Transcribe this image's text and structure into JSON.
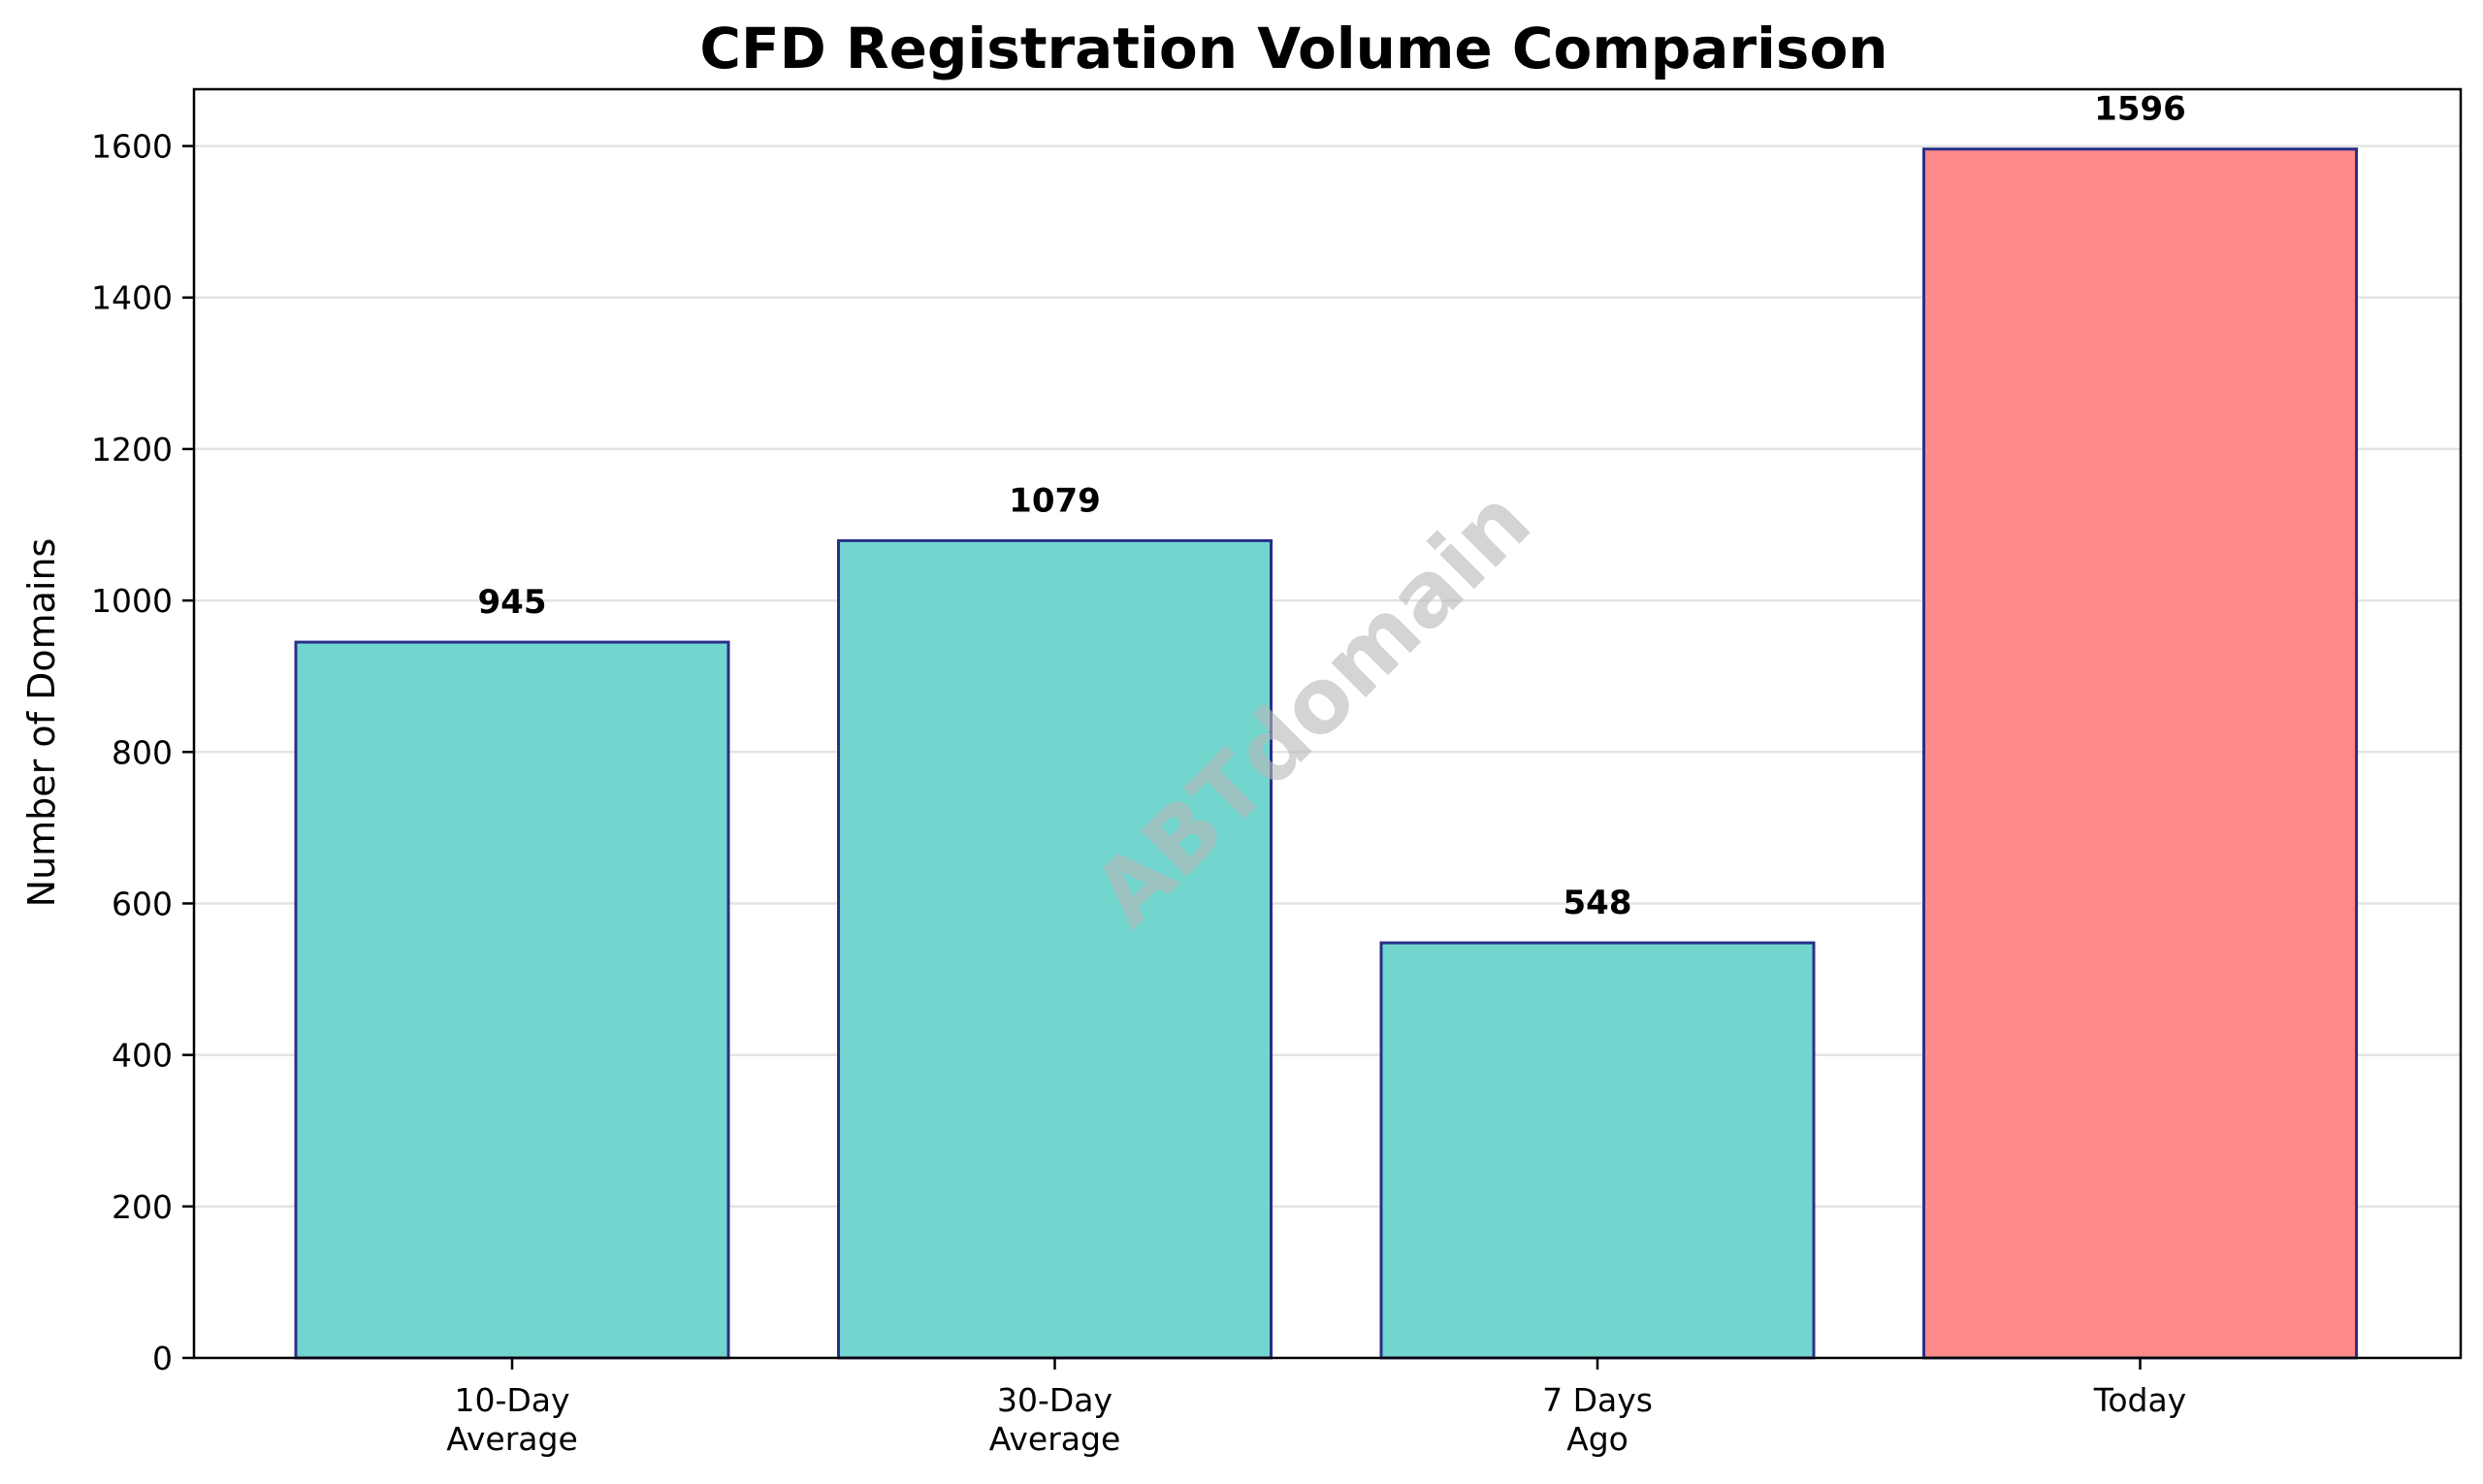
{
  "chart_data": {
    "type": "bar",
    "title": "CFD Registration Volume Comparison",
    "xlabel": "",
    "ylabel": "Number of Domains",
    "categories": [
      [
        "10-Day",
        "Average"
      ],
      [
        "30-Day",
        "Average"
      ],
      [
        "7 Days",
        "Ago"
      ],
      [
        "Today"
      ]
    ],
    "values": [
      945,
      1079,
      548,
      1596
    ],
    "data_labels": [
      "945",
      "1079",
      "548",
      "1596"
    ],
    "bar_colors": [
      "#72d6ce",
      "#72d6ce",
      "#72d6ce",
      "#ff8888"
    ],
    "bar_edge_color": "#2a2f8a",
    "ylim": [
      0,
      1675
    ],
    "yticks": [
      0,
      200,
      400,
      600,
      800,
      1000,
      1200,
      1400,
      1600
    ],
    "grid": "horizontal",
    "watermark": "ABTdomain"
  }
}
